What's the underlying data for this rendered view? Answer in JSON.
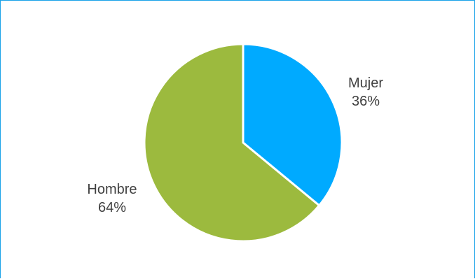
{
  "chart_data": {
    "type": "pie",
    "slices": [
      {
        "label": "Mujer",
        "value": 36,
        "value_label": "36%",
        "color": "#00aaff"
      },
      {
        "label": "Hombre",
        "value": 64,
        "value_label": "64%",
        "color": "#9cba3e"
      }
    ],
    "start_angle_deg": 0,
    "direction": "clockwise",
    "border_color": "#1aa3e8"
  }
}
